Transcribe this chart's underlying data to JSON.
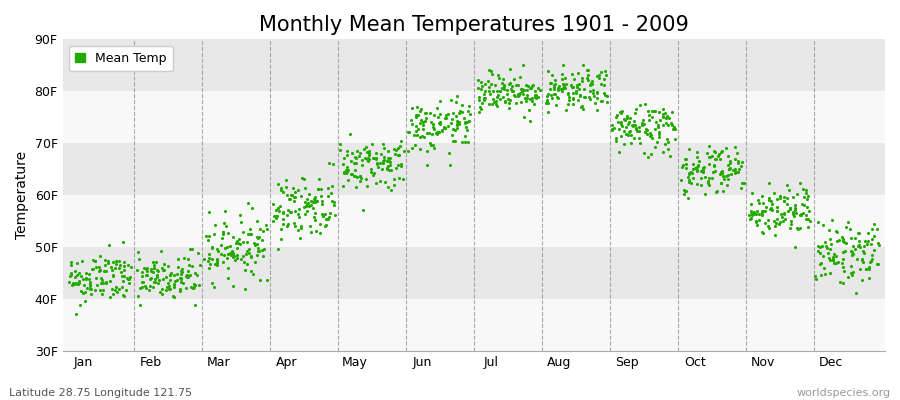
{
  "title": "Monthly Mean Temperatures 1901 - 2009",
  "ylabel": "Temperature",
  "footer_left": "Latitude 28.75 Longitude 121.75",
  "footer_right": "worldspecies.org",
  "legend_label": "Mean Temp",
  "ylim": [
    30,
    90
  ],
  "yticks": [
    30,
    40,
    50,
    60,
    70,
    80,
    90
  ],
  "ytick_labels": [
    "30F",
    "40F",
    "50F",
    "60F",
    "70F",
    "80F",
    "90F"
  ],
  "months": [
    "Jan",
    "Feb",
    "Mar",
    "Apr",
    "May",
    "Jun",
    "Jul",
    "Aug",
    "Sep",
    "Oct",
    "Nov",
    "Dec"
  ],
  "month_means_F": [
    44,
    44,
    50,
    58,
    66,
    73,
    80,
    80,
    73,
    65,
    57,
    49
  ],
  "month_stds_F": [
    2.5,
    2.5,
    3.0,
    3.0,
    2.5,
    2.5,
    2.0,
    2.0,
    2.5,
    2.5,
    2.5,
    3.0
  ],
  "month_trends_F": [
    0.01,
    0.01,
    0.015,
    0.015,
    0.01,
    0.01,
    0.005,
    0.005,
    0.01,
    0.01,
    0.01,
    0.01
  ],
  "n_years": 109,
  "dot_color": "#22aa00",
  "bg_color": "#efefef",
  "band_color_light": "#f8f8f8",
  "band_color_dark": "#e8e8e8",
  "vline_color": "#888888",
  "title_fontsize": 15,
  "axis_fontsize": 10,
  "tick_fontsize": 9,
  "footer_fontsize": 8,
  "legend_fontsize": 9,
  "marker_size": 5,
  "random_seed": 42
}
